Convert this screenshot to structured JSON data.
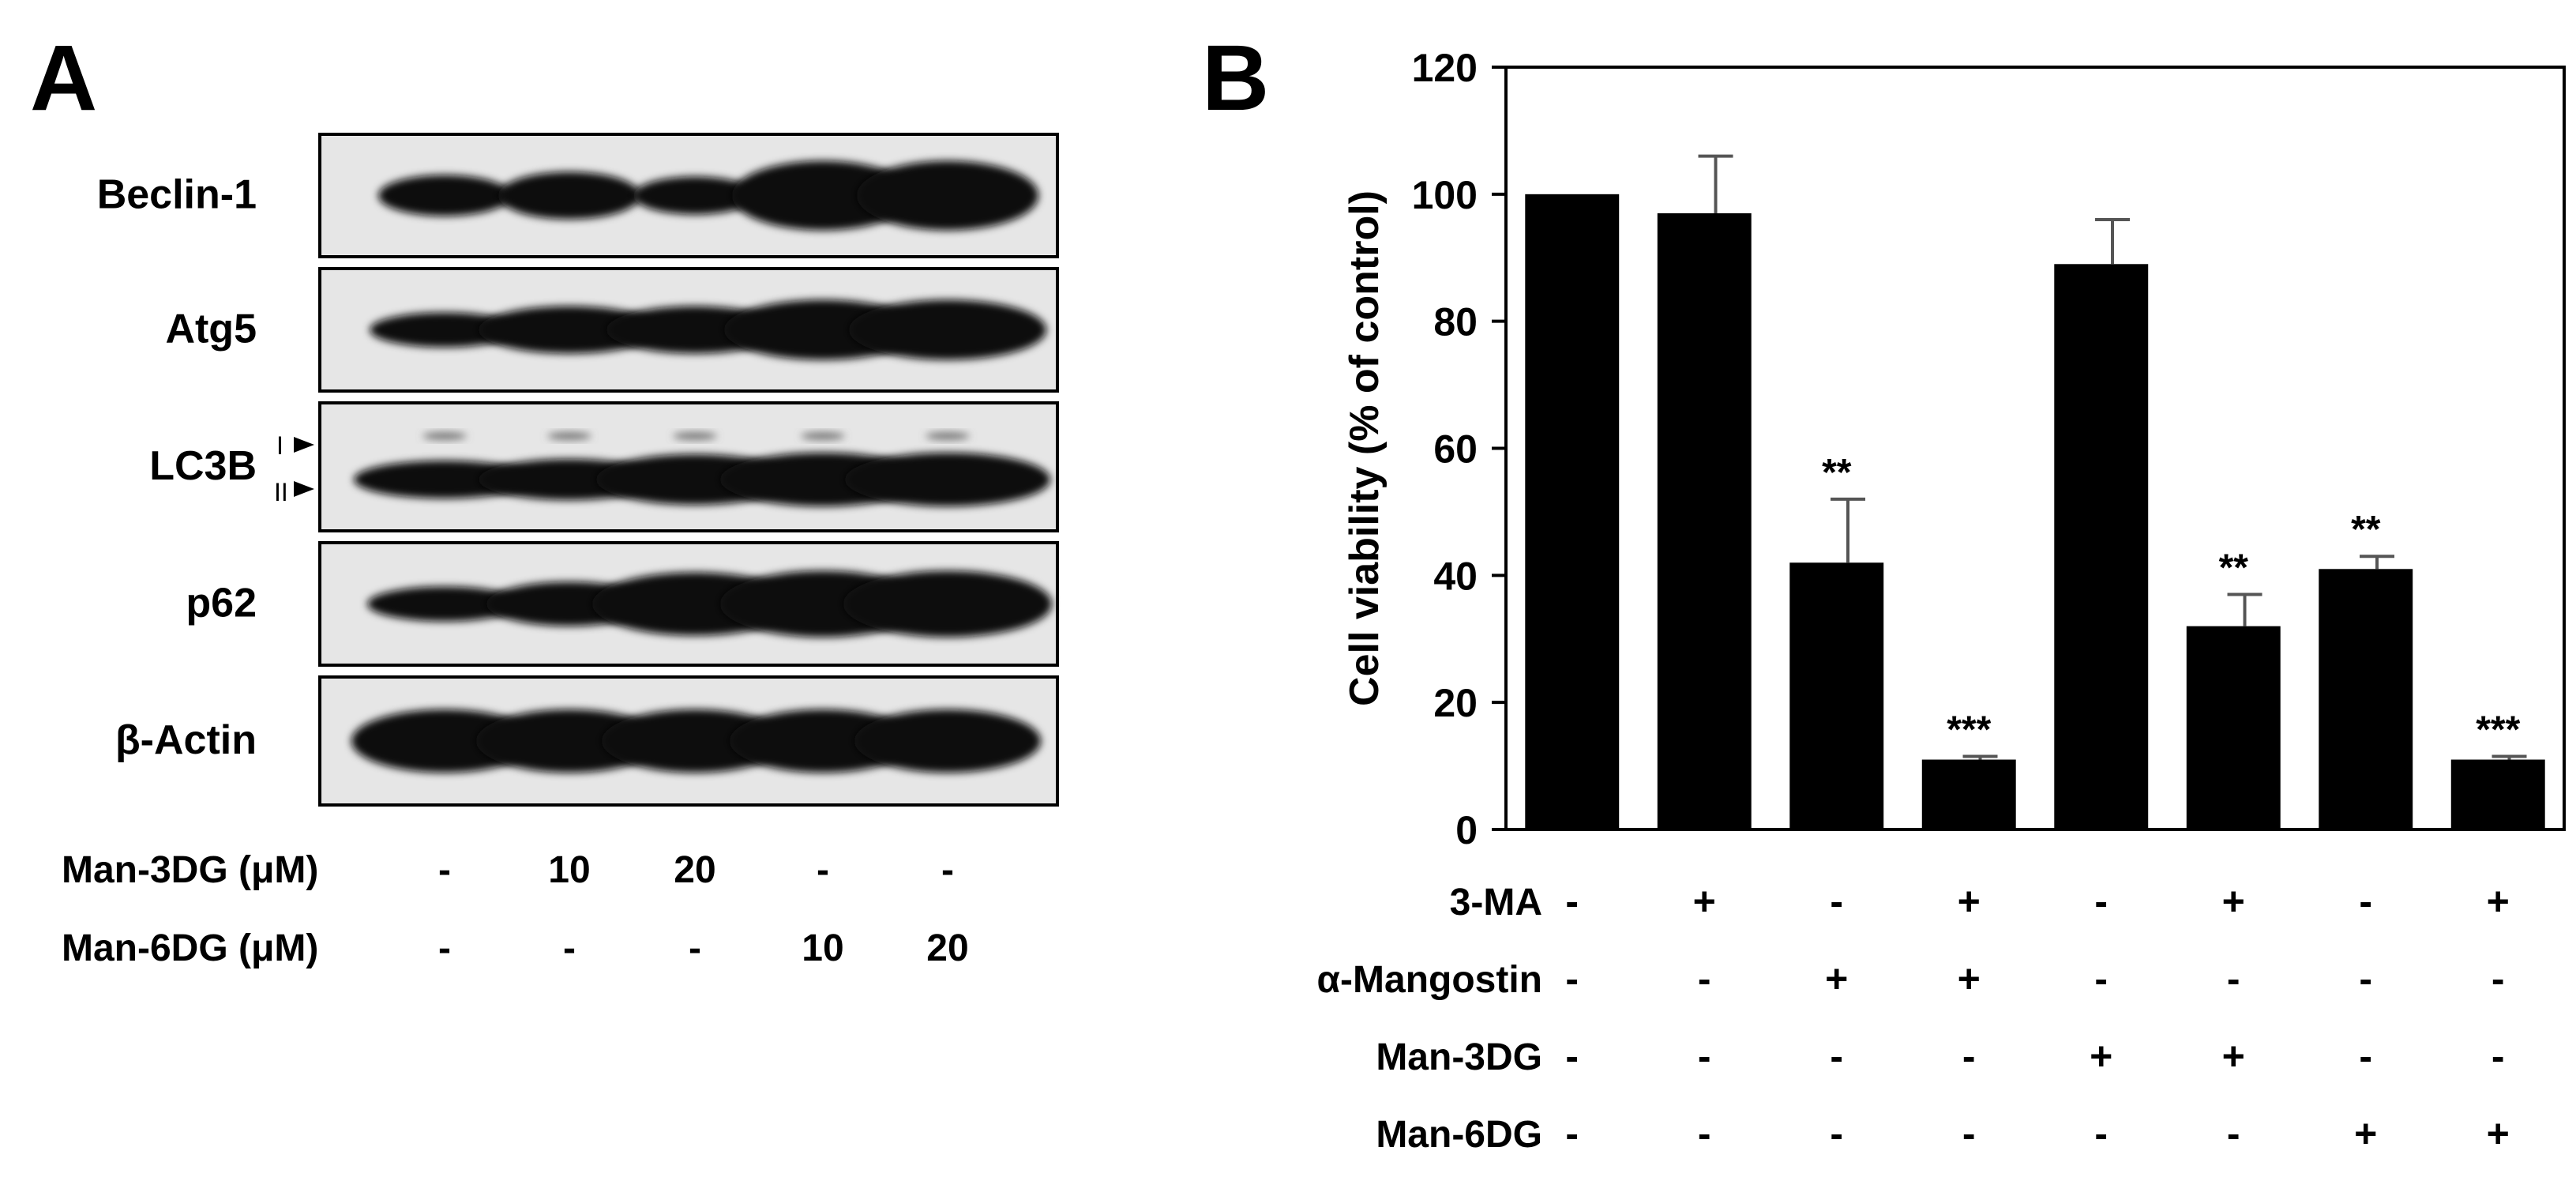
{
  "panels": {
    "a": "A",
    "b": "B"
  },
  "blot": {
    "proteins": [
      "Beclin-1",
      "Atg5",
      "LC3B",
      "p62",
      "β-Actin"
    ],
    "lc3b_bands": [
      "I",
      "II"
    ],
    "treatments": [
      {
        "label": "Man-3DG (μM)",
        "values": [
          "-",
          "10",
          "20",
          "-",
          "-"
        ]
      },
      {
        "label": "Man-6DG (μM)",
        "values": [
          "-",
          "-",
          "-",
          "10",
          "20"
        ]
      }
    ]
  },
  "chart_data": {
    "type": "bar",
    "title": "",
    "xlabel": "",
    "ylabel": "Cell viability (% of control)",
    "ylim": [
      0,
      120
    ],
    "yticks": [
      0,
      20,
      40,
      60,
      80,
      100,
      120
    ],
    "bar_color": "#000000",
    "error_color": "#555555",
    "bars": [
      {
        "value": 100,
        "error": 0,
        "sig": ""
      },
      {
        "value": 97,
        "error": 9,
        "sig": ""
      },
      {
        "value": 42,
        "error": 10,
        "sig": "**"
      },
      {
        "value": 11,
        "error": 0.5,
        "sig": "***"
      },
      {
        "value": 89,
        "error": 7,
        "sig": ""
      },
      {
        "value": 32,
        "error": 5,
        "sig": "**"
      },
      {
        "value": 41,
        "error": 2,
        "sig": "**"
      },
      {
        "value": 11,
        "error": 0.5,
        "sig": "***"
      }
    ],
    "conditions": [
      {
        "label": "3-MA",
        "values": [
          "-",
          "+",
          "-",
          "+",
          "-",
          "+",
          "-",
          "+"
        ]
      },
      {
        "label": "α-Mangostin",
        "values": [
          "-",
          "-",
          "+",
          "+",
          "-",
          "-",
          "-",
          "-"
        ]
      },
      {
        "label": "Man-3DG",
        "values": [
          "-",
          "-",
          "-",
          "-",
          "+",
          "+",
          "-",
          "-"
        ]
      },
      {
        "label": "Man-6DG",
        "values": [
          "-",
          "-",
          "-",
          "-",
          "-",
          "-",
          "+",
          "+"
        ]
      }
    ]
  }
}
